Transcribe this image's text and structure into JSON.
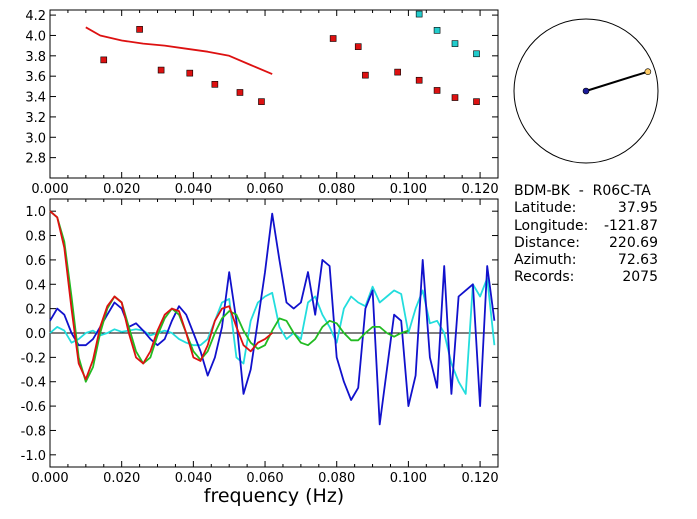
{
  "station": {
    "name": "BDM-BK  -  R06C-TA",
    "fields": [
      {
        "label": "Latitude:",
        "value": "37.95"
      },
      {
        "label": "Longitude:",
        "value": "-121.87"
      },
      {
        "label": "Distance:",
        "value": "220.69"
      },
      {
        "label": "Azimuth:",
        "value": "72.63"
      },
      {
        "label": "Records:",
        "value": "2075"
      }
    ]
  },
  "colors": {
    "red": "#dd1111",
    "blue": "#1111cc",
    "cyan": "#22dddd",
    "green": "#22bb22",
    "marker_red": "#dd1111",
    "marker_cyan": "#22cccc"
  },
  "chart_data": [
    {
      "type": "scatter",
      "title": "",
      "xlabel": "",
      "ylabel": "",
      "xlim": [
        0.0,
        0.125
      ],
      "ylim": [
        2.6,
        4.25
      ],
      "x_ticks": [
        "0.000",
        "0.020",
        "0.040",
        "0.060",
        "0.080",
        "0.100",
        "0.120"
      ],
      "y_ticks": [
        "2.8",
        "3.0",
        "3.2",
        "3.4",
        "3.6",
        "3.8",
        "4.0",
        "4.2"
      ],
      "series": [
        {
          "kind": "line",
          "color": "red",
          "x": [
            0.01,
            0.014,
            0.02,
            0.026,
            0.032,
            0.038,
            0.044,
            0.05,
            0.056,
            0.062
          ],
          "y": [
            4.08,
            4.0,
            3.95,
            3.92,
            3.9,
            3.87,
            3.84,
            3.8,
            3.71,
            3.62
          ]
        },
        {
          "kind": "points",
          "color": "marker_red",
          "x": [
            0.015,
            0.025,
            0.031,
            0.039,
            0.046,
            0.053,
            0.059,
            0.079,
            0.086,
            0.088,
            0.097,
            0.103,
            0.108,
            0.113,
            0.119
          ],
          "y": [
            3.76,
            4.06,
            3.66,
            3.63,
            3.52,
            3.44,
            3.35,
            3.97,
            3.89,
            3.61,
            3.64,
            3.56,
            3.46,
            3.39,
            3.35
          ]
        },
        {
          "kind": "points",
          "color": "marker_cyan",
          "x": [
            0.103,
            0.108,
            0.113,
            0.119
          ],
          "y": [
            4.21,
            4.05,
            3.92,
            3.82
          ]
        }
      ]
    },
    {
      "type": "line",
      "title": "",
      "xlabel": "frequency (Hz)",
      "ylabel": "",
      "xlim": [
        0.0,
        0.125
      ],
      "ylim": [
        -1.1,
        1.1
      ],
      "x_ticks": [
        "0.000",
        "0.020",
        "0.040",
        "0.060",
        "0.080",
        "0.100",
        "0.120"
      ],
      "y_ticks": [
        "-1.0",
        "-0.8",
        "-0.6",
        "-0.4",
        "-0.2",
        "0.0",
        "0.2",
        "0.4",
        "0.6",
        "0.8",
        "1.0"
      ],
      "series": [
        {
          "color": "cyan",
          "x": [
            0.0,
            0.002,
            0.004,
            0.006,
            0.008,
            0.01,
            0.012,
            0.014,
            0.016,
            0.018,
            0.02,
            0.022,
            0.024,
            0.026,
            0.028,
            0.03,
            0.032,
            0.034,
            0.036,
            0.038,
            0.04,
            0.042,
            0.044,
            0.046,
            0.048,
            0.05,
            0.052,
            0.054,
            0.056,
            0.058,
            0.06,
            0.062,
            0.064,
            0.066,
            0.068,
            0.07,
            0.072,
            0.074,
            0.076,
            0.078,
            0.08,
            0.082,
            0.084,
            0.086,
            0.088,
            0.09,
            0.092,
            0.094,
            0.096,
            0.098,
            0.1,
            0.102,
            0.104,
            0.106,
            0.108,
            0.11,
            0.112,
            0.114,
            0.116,
            0.118,
            0.12,
            0.122,
            0.124
          ],
          "y": [
            0.0,
            0.05,
            0.02,
            -0.08,
            -0.05,
            0.0,
            0.02,
            -0.02,
            0.0,
            0.03,
            0.01,
            0.02,
            0.03,
            0.02,
            -0.02,
            0.0,
            0.02,
            0.0,
            -0.05,
            -0.08,
            -0.1,
            -0.1,
            -0.05,
            0.1,
            0.25,
            0.28,
            -0.2,
            -0.25,
            0.1,
            0.25,
            0.3,
            0.33,
            0.05,
            -0.05,
            0.0,
            -0.05,
            0.25,
            0.3,
            0.15,
            0.05,
            -0.08,
            0.2,
            0.3,
            0.25,
            0.22,
            0.38,
            0.25,
            0.3,
            0.35,
            0.32,
            0.0,
            0.2,
            0.35,
            0.08,
            0.1,
            0.0,
            -0.25,
            -0.4,
            -0.5,
            0.4,
            0.3,
            0.45,
            -0.1
          ]
        },
        {
          "color": "blue",
          "x": [
            0.0,
            0.002,
            0.004,
            0.006,
            0.008,
            0.01,
            0.012,
            0.014,
            0.016,
            0.018,
            0.02,
            0.022,
            0.024,
            0.026,
            0.028,
            0.03,
            0.032,
            0.034,
            0.036,
            0.038,
            0.04,
            0.042,
            0.044,
            0.046,
            0.048,
            0.05,
            0.052,
            0.054,
            0.056,
            0.058,
            0.06,
            0.062,
            0.064,
            0.066,
            0.068,
            0.07,
            0.072,
            0.074,
            0.076,
            0.078,
            0.08,
            0.082,
            0.084,
            0.086,
            0.088,
            0.09,
            0.092,
            0.094,
            0.096,
            0.098,
            0.1,
            0.102,
            0.104,
            0.106,
            0.108,
            0.11,
            0.112,
            0.114,
            0.116,
            0.118,
            0.12,
            0.122,
            0.124
          ],
          "y": [
            0.1,
            0.2,
            0.15,
            0.0,
            -0.1,
            -0.1,
            -0.05,
            0.05,
            0.15,
            0.25,
            0.2,
            0.05,
            0.08,
            0.02,
            -0.05,
            -0.1,
            -0.05,
            0.1,
            0.22,
            0.15,
            0.0,
            -0.15,
            -0.35,
            -0.2,
            0.05,
            0.5,
            0.1,
            -0.5,
            -0.3,
            0.1,
            0.5,
            0.98,
            0.6,
            0.25,
            0.2,
            0.25,
            0.5,
            0.15,
            0.6,
            0.55,
            -0.2,
            -0.4,
            -0.55,
            -0.45,
            0.2,
            0.35,
            -0.75,
            -0.3,
            0.15,
            0.1,
            -0.6,
            -0.35,
            0.6,
            -0.2,
            -0.45,
            0.55,
            -0.5,
            0.3,
            0.35,
            0.4,
            -0.6,
            0.55,
            0.1
          ]
        },
        {
          "color": "green",
          "x": [
            0.0,
            0.002,
            0.004,
            0.006,
            0.008,
            0.01,
            0.012,
            0.014,
            0.016,
            0.018,
            0.02,
            0.022,
            0.024,
            0.026,
            0.028,
            0.03,
            0.032,
            0.034,
            0.036,
            0.038,
            0.04,
            0.042,
            0.044,
            0.046,
            0.048,
            0.05,
            0.052,
            0.054,
            0.056,
            0.058,
            0.06,
            0.062,
            0.064,
            0.066,
            0.068,
            0.07,
            0.072,
            0.074,
            0.076,
            0.078,
            0.08,
            0.082,
            0.084,
            0.086,
            0.088,
            0.09,
            0.092,
            0.094,
            0.096,
            0.098,
            0.1
          ],
          "y": [
            1.0,
            0.95,
            0.75,
            0.3,
            -0.2,
            -0.4,
            -0.28,
            0.0,
            0.2,
            0.3,
            0.25,
            0.05,
            -0.15,
            -0.25,
            -0.2,
            -0.02,
            0.12,
            0.2,
            0.15,
            0.0,
            -0.15,
            -0.22,
            -0.15,
            0.0,
            0.12,
            0.18,
            0.15,
            0.02,
            -0.08,
            -0.13,
            -0.1,
            0.02,
            0.12,
            0.1,
            0.0,
            -0.08,
            -0.1,
            -0.05,
            0.05,
            0.1,
            0.08,
            0.0,
            -0.06,
            -0.06,
            0.0,
            0.05,
            0.05,
            0.0,
            -0.03,
            0.0,
            0.02
          ]
        },
        {
          "color": "red",
          "x": [
            0.0,
            0.002,
            0.004,
            0.006,
            0.008,
            0.01,
            0.012,
            0.014,
            0.016,
            0.018,
            0.02,
            0.022,
            0.024,
            0.026,
            0.028,
            0.03,
            0.032,
            0.034,
            0.036,
            0.038,
            0.04,
            0.042,
            0.044,
            0.046,
            0.048,
            0.05,
            0.052,
            0.054,
            0.056,
            0.058,
            0.06,
            0.062
          ],
          "y": [
            1.0,
            0.95,
            0.7,
            0.2,
            -0.25,
            -0.38,
            -0.22,
            0.05,
            0.22,
            0.3,
            0.25,
            0.0,
            -0.2,
            -0.25,
            -0.15,
            0.02,
            0.15,
            0.2,
            0.18,
            0.0,
            -0.2,
            -0.23,
            -0.1,
            0.1,
            0.2,
            0.22,
            0.05,
            -0.1,
            -0.15,
            -0.08,
            -0.05,
            0.0
          ]
        }
      ]
    }
  ],
  "polar": {
    "azimuth_deg": 72.63,
    "distance_fraction": 0.9
  }
}
